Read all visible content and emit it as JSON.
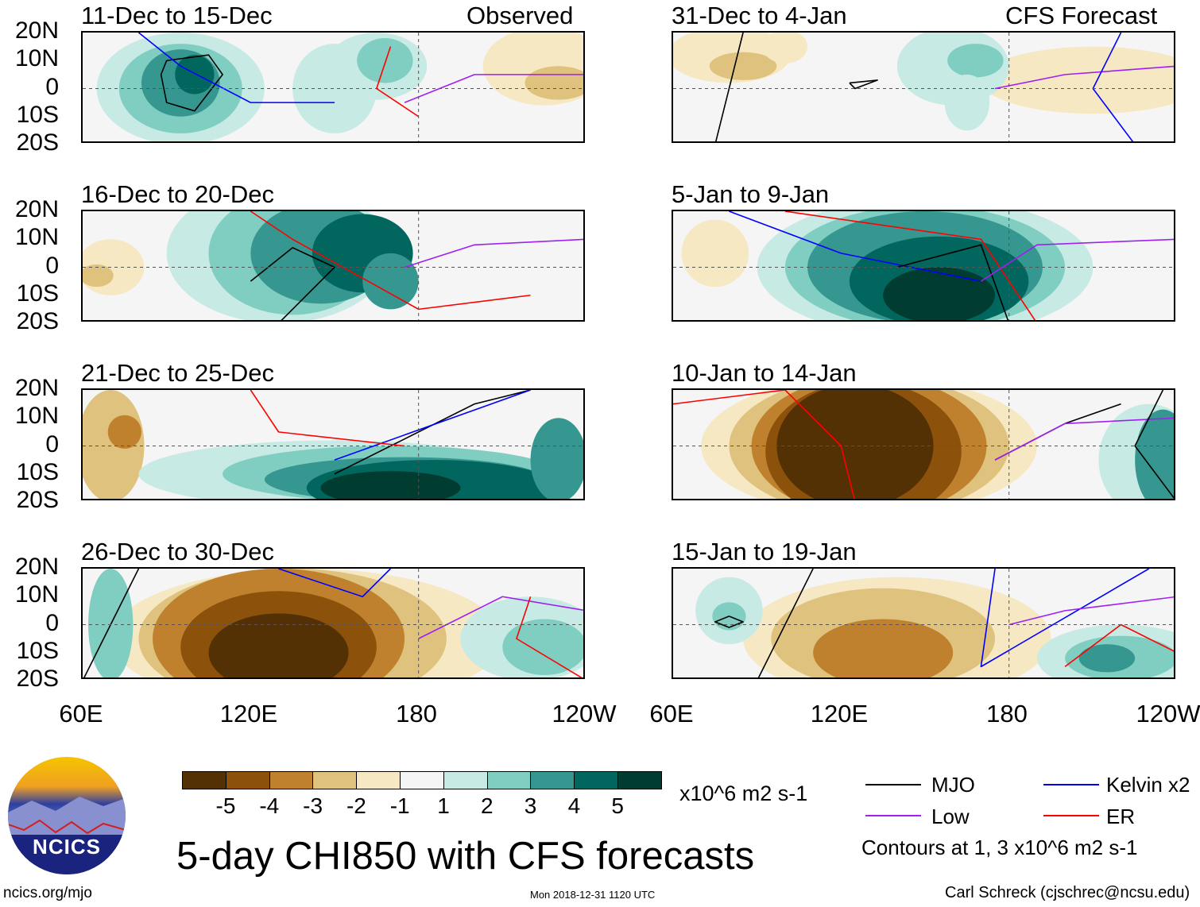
{
  "observed_label": "Observed",
  "forecast_label": "CFS Forecast",
  "panels_observed": [
    "11-Dec to 15-Dec",
    "16-Dec to 20-Dec",
    "21-Dec to 25-Dec",
    "26-Dec to 30-Dec"
  ],
  "panels_forecast": [
    "31-Dec to 4-Jan",
    "5-Jan to 9-Jan",
    "10-Jan to 14-Jan",
    "15-Jan to 19-Jan"
  ],
  "lat_labels": [
    "20N",
    "10N",
    "0",
    "10S",
    "20S"
  ],
  "lon_labels": [
    "60E",
    "120E",
    "180",
    "120W"
  ],
  "colorbar": {
    "colors": [
      "#543005",
      "#8c510a",
      "#bf812d",
      "#dfc27d",
      "#f6e8c3",
      "#f5f5f5",
      "#c7eae5",
      "#80cdc1",
      "#35978f",
      "#01665e",
      "#003c30"
    ],
    "labels": [
      "-5",
      "-4",
      "-3",
      "-2",
      "-1",
      "1",
      "2",
      "3",
      "4",
      "5"
    ],
    "units": "x10^6 m2 s-1"
  },
  "title": "5-day CHI850 with CFS forecasts",
  "legend": {
    "items": [
      {
        "label": "MJO",
        "color": "#000000"
      },
      {
        "label": "Kelvin x2",
        "color": "#0000ff"
      },
      {
        "label": "Low",
        "color": "#a020f0"
      },
      {
        "label": "ER",
        "color": "#ff0000"
      }
    ],
    "contours_note": "Contours at 1, 3 x10^6 m2 s-1"
  },
  "logo_text": "NCICS",
  "site": "ncics.org/mjo",
  "timestamp": "Mon 2018-12-31 1120 UTC",
  "credit": "Carl Schreck (cjschrec@ncsu.edu)"
}
